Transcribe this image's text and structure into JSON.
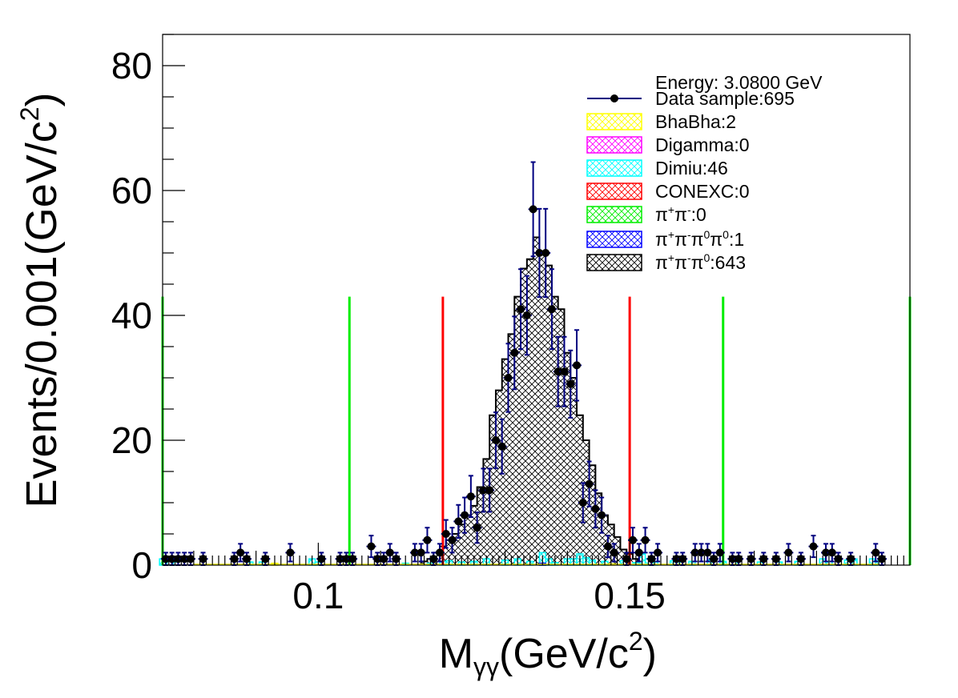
{
  "chart_data": {
    "type": "histogram",
    "title": "",
    "xlabel": {
      "main": "M",
      "sub": "γγ",
      "unit": "(GeV/c",
      "sup": "2",
      "close": ")"
    },
    "ylabel": {
      "main": "Events/0.001(GeV/c",
      "sup": "2",
      "close": ")"
    },
    "xlim": [
      0.075,
      0.195
    ],
    "ylim": [
      0,
      85
    ],
    "x_ticks": [
      0.1,
      0.15
    ],
    "x_tick_labels": [
      "0.1",
      "0.15"
    ],
    "y_ticks": [
      0,
      20,
      40,
      60,
      80
    ],
    "y_tick_labels": [
      "0",
      "20",
      "40",
      "60",
      "80"
    ],
    "grid": false,
    "legend_position": "top-right",
    "energy_label": "Energy: 3.0800 GeV",
    "legend": [
      {
        "key": "data",
        "text": "Data sample:695",
        "color": "#000080",
        "marker": "#000000"
      },
      {
        "key": "bhabha",
        "text": "BhaBha:2",
        "color": "#ffff00"
      },
      {
        "key": "digamma",
        "text": "Digamma:0",
        "color": "#ff00ff"
      },
      {
        "key": "dimiu",
        "text": "Dimiu:46",
        "color": "#00ffff"
      },
      {
        "key": "conexc",
        "text": "CONEXC:0",
        "color": "#ff0000"
      },
      {
        "key": "pipi",
        "text_parts": [
          "π",
          "+",
          "π",
          "-",
          ":0"
        ],
        "color": "#00ee00"
      },
      {
        "key": "pipipi0pi0",
        "text_parts": [
          "π",
          "+",
          "π",
          "-",
          "π",
          "0",
          "π",
          "0",
          ":1"
        ],
        "color": "#0000ff"
      },
      {
        "key": "pipipi0",
        "text_parts": [
          "π",
          "+",
          "π",
          "-",
          "π",
          "0",
          ":643"
        ],
        "color": "#000000"
      }
    ],
    "vertical_lines": [
      {
        "x": 0.075,
        "color": "#00ee00",
        "y_top": 43
      },
      {
        "x": 0.105,
        "color": "#00ee00",
        "y_top": 43
      },
      {
        "x": 0.12,
        "color": "#ff0000",
        "y_top": 43
      },
      {
        "x": 0.15,
        "color": "#ff0000",
        "y_top": 43
      },
      {
        "x": 0.165,
        "color": "#00ee00",
        "y_top": 43
      },
      {
        "x": 0.195,
        "color": "#00ee00",
        "y_top": 43
      }
    ],
    "stack_bins": [
      [
        0.117,
        0.6
      ],
      [
        0.118,
        1.0
      ],
      [
        0.119,
        2.0
      ],
      [
        0.12,
        3.0
      ],
      [
        0.121,
        4.0
      ],
      [
        0.122,
        5.0
      ],
      [
        0.123,
        6.5
      ],
      [
        0.124,
        8.0
      ],
      [
        0.125,
        9.5
      ],
      [
        0.126,
        12.5
      ],
      [
        0.127,
        17.0
      ],
      [
        0.128,
        24.0
      ],
      [
        0.129,
        28.0
      ],
      [
        0.13,
        33.0
      ],
      [
        0.131,
        37.0
      ],
      [
        0.132,
        43.0
      ],
      [
        0.133,
        47.5
      ],
      [
        0.134,
        49.0
      ],
      [
        0.135,
        52.5
      ],
      [
        0.136,
        50.0
      ],
      [
        0.137,
        48.0
      ],
      [
        0.138,
        43.0
      ],
      [
        0.139,
        41.0
      ],
      [
        0.14,
        34.0
      ],
      [
        0.141,
        30.0
      ],
      [
        0.142,
        24.0
      ],
      [
        0.143,
        20.0
      ],
      [
        0.144,
        16.0
      ],
      [
        0.145,
        11.5
      ],
      [
        0.146,
        8.0
      ],
      [
        0.147,
        6.5
      ],
      [
        0.148,
        4.5
      ],
      [
        0.149,
        2.5
      ],
      [
        0.15,
        1.8
      ],
      [
        0.151,
        1.0
      ]
    ],
    "dimiu_bins": [
      [
        0.075,
        1.0
      ],
      [
        0.076,
        1.0
      ],
      [
        0.077,
        0.5
      ],
      [
        0.089,
        0.5
      ],
      [
        0.091,
        0.5
      ],
      [
        0.099,
        1.0
      ],
      [
        0.1,
        0.5
      ],
      [
        0.114,
        0.3
      ],
      [
        0.118,
        0.3
      ],
      [
        0.12,
        0.6
      ],
      [
        0.121,
        0.7
      ],
      [
        0.123,
        0.5
      ],
      [
        0.125,
        0.6
      ],
      [
        0.127,
        1.0
      ],
      [
        0.13,
        0.8
      ],
      [
        0.132,
        1.0
      ],
      [
        0.134,
        0.6
      ],
      [
        0.136,
        2.0
      ],
      [
        0.137,
        1.0
      ],
      [
        0.138,
        0.4
      ],
      [
        0.14,
        1.0
      ],
      [
        0.141,
        1.0
      ],
      [
        0.142,
        1.8
      ],
      [
        0.143,
        1.2
      ],
      [
        0.144,
        0.8
      ],
      [
        0.146,
        0.6
      ],
      [
        0.149,
        0.7
      ],
      [
        0.151,
        0.4
      ],
      [
        0.152,
        1.8
      ],
      [
        0.153,
        1.0
      ],
      [
        0.154,
        0.5
      ],
      [
        0.157,
        0.7
      ],
      [
        0.158,
        1.0
      ],
      [
        0.16,
        0.6
      ],
      [
        0.163,
        0.8
      ],
      [
        0.165,
        0.6
      ],
      [
        0.167,
        0.8
      ],
      [
        0.171,
        0.5
      ],
      [
        0.174,
        0.5
      ],
      [
        0.177,
        0.6
      ],
      [
        0.181,
        1.0
      ],
      [
        0.182,
        0.6
      ],
      [
        0.185,
        0.8
      ],
      [
        0.186,
        1.0
      ],
      [
        0.189,
        1.0
      ],
      [
        0.19,
        0.7
      ]
    ],
    "bhabha_bins": [
      [
        0.093,
        0.3
      ],
      [
        0.147,
        0.2
      ]
    ],
    "pipipi0pi0_bins": [
      [
        0.136,
        0.3
      ]
    ],
    "data_points": [
      [
        0.0755,
        1
      ],
      [
        0.0765,
        1
      ],
      [
        0.0775,
        1
      ],
      [
        0.0785,
        1
      ],
      [
        0.0795,
        1
      ],
      [
        0.0815,
        1
      ],
      [
        0.0865,
        1
      ],
      [
        0.0875,
        2
      ],
      [
        0.0885,
        1
      ],
      [
        0.0915,
        1
      ],
      [
        0.0955,
        2
      ],
      [
        0.1005,
        1
      ],
      [
        0.1035,
        1
      ],
      [
        0.1045,
        1
      ],
      [
        0.1055,
        1
      ],
      [
        0.1085,
        3
      ],
      [
        0.1095,
        1
      ],
      [
        0.1105,
        1
      ],
      [
        0.1115,
        2
      ],
      [
        0.1125,
        1
      ],
      [
        0.1155,
        2
      ],
      [
        0.1165,
        2
      ],
      [
        0.1175,
        4
      ],
      [
        0.1185,
        1
      ],
      [
        0.1195,
        2
      ],
      [
        0.1205,
        5
      ],
      [
        0.1215,
        4
      ],
      [
        0.1225,
        7
      ],
      [
        0.1235,
        8
      ],
      [
        0.1245,
        11
      ],
      [
        0.1255,
        6
      ],
      [
        0.1265,
        12
      ],
      [
        0.1275,
        12
      ],
      [
        0.1285,
        20
      ],
      [
        0.1295,
        19
      ],
      [
        0.1305,
        30
      ],
      [
        0.1315,
        34
      ],
      [
        0.1325,
        41
      ],
      [
        0.1335,
        40
      ],
      [
        0.1345,
        57
      ],
      [
        0.1355,
        50
      ],
      [
        0.1365,
        50
      ],
      [
        0.1375,
        41
      ],
      [
        0.1385,
        31
      ],
      [
        0.1395,
        31
      ],
      [
        0.1405,
        29
      ],
      [
        0.1415,
        32
      ],
      [
        0.1425,
        10
      ],
      [
        0.1435,
        13
      ],
      [
        0.1445,
        9
      ],
      [
        0.1455,
        8
      ],
      [
        0.1465,
        3
      ],
      [
        0.1475,
        2
      ],
      [
        0.1495,
        1
      ],
      [
        0.1505,
        4
      ],
      [
        0.1515,
        2
      ],
      [
        0.1525,
        4
      ],
      [
        0.1535,
        1
      ],
      [
        0.1545,
        2
      ],
      [
        0.1575,
        1
      ],
      [
        0.1585,
        1
      ],
      [
        0.1605,
        2
      ],
      [
        0.1615,
        2
      ],
      [
        0.1625,
        2
      ],
      [
        0.1635,
        1
      ],
      [
        0.1645,
        2
      ],
      [
        0.1665,
        1
      ],
      [
        0.1675,
        1
      ],
      [
        0.1695,
        1
      ],
      [
        0.1715,
        1
      ],
      [
        0.1735,
        1
      ],
      [
        0.1755,
        2
      ],
      [
        0.1775,
        1
      ],
      [
        0.1795,
        3
      ],
      [
        0.1815,
        2
      ],
      [
        0.1825,
        2
      ],
      [
        0.1835,
        1
      ],
      [
        0.1855,
        1
      ],
      [
        0.1895,
        2
      ],
      [
        0.1905,
        1
      ]
    ]
  }
}
